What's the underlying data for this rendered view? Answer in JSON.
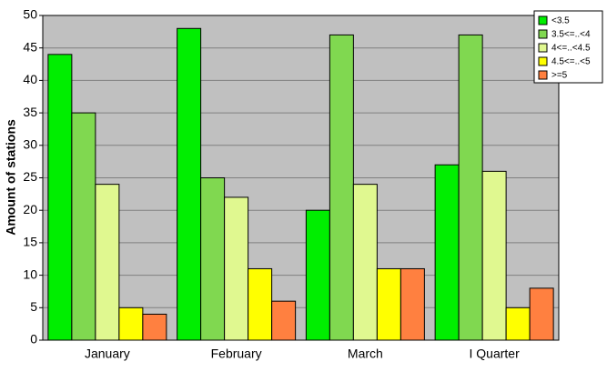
{
  "chart_data": {
    "type": "bar",
    "y_label": "Amount of stations",
    "categories": [
      "January",
      "February",
      "March",
      "I Quarter"
    ],
    "series": [
      {
        "name": "<3.5",
        "color": "#00ee00",
        "values": [
          44,
          48,
          20,
          27
        ]
      },
      {
        "name": "3.5<=..<4",
        "color": "#80d850",
        "values": [
          35,
          25,
          47,
          47
        ]
      },
      {
        "name": "4<=..<4.5",
        "color": "#e0f890",
        "values": [
          24,
          22,
          24,
          26
        ]
      },
      {
        "name": "4.5<=..<5",
        "color": "#ffff00",
        "values": [
          5,
          11,
          11,
          5
        ]
      },
      {
        "name": ">=5",
        "color": "#ff8040",
        "values": [
          4,
          6,
          11,
          8
        ]
      }
    ],
    "ylim": [
      0,
      50
    ],
    "yticks": [
      0,
      5,
      10,
      15,
      20,
      25,
      30,
      35,
      40,
      45,
      50
    ],
    "grid": true,
    "plot_background": "#c0c0c0",
    "legend": "top-right"
  }
}
